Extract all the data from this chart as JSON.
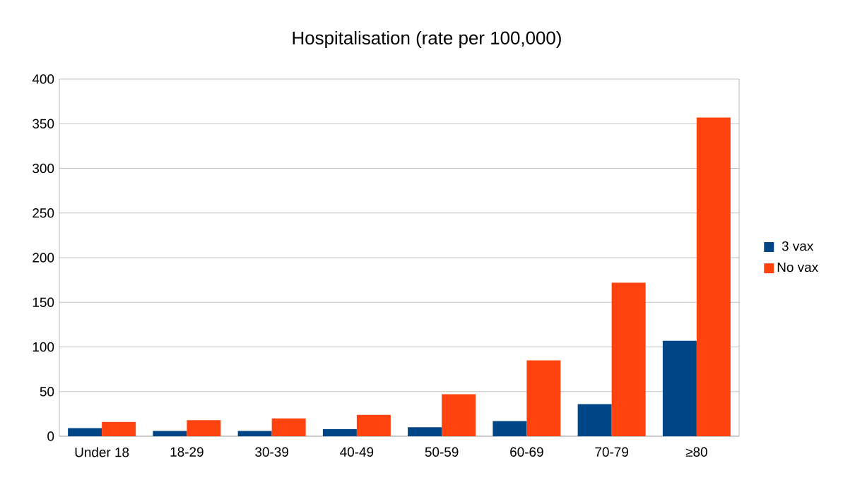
{
  "chart_data": {
    "type": "bar",
    "title": "Hospitalisation (rate per 100,000)",
    "categories": [
      "Under 18",
      "18-29",
      "30-39",
      "40-49",
      "50-59",
      "60-69",
      "70-79",
      "≥80"
    ],
    "series": [
      {
        "name": "3 vax",
        "color": "#004586",
        "values": [
          9,
          6,
          6,
          8,
          10,
          17,
          36,
          107
        ]
      },
      {
        "name": "No vax",
        "color": "#ff420e",
        "values": [
          16,
          18,
          20,
          24,
          47,
          85,
          172,
          357
        ]
      }
    ],
    "ylim": [
      0,
      400
    ],
    "yticks": [
      0,
      50,
      100,
      150,
      200,
      250,
      300,
      350,
      400
    ],
    "grid": "y",
    "legend": "right"
  }
}
